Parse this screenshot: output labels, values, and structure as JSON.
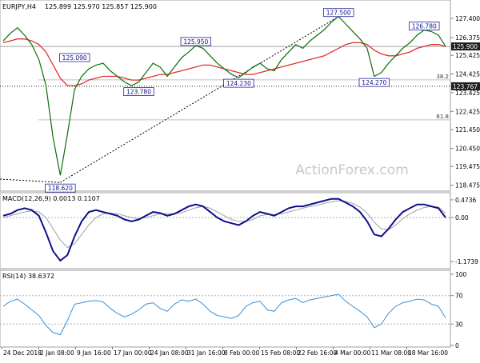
{
  "chart_data": [
    {
      "type": "line",
      "title": "EURJPY,H4",
      "ohlc": "125.899 125.970 125.857 125.900",
      "watermark": "ActionForex.com",
      "ylim": [
        118.2,
        128.3
      ],
      "y_ticks": [
        "127.400",
        "126.375",
        "125.425",
        "124.425",
        "123.425",
        "122.425",
        "121.450",
        "120.450",
        "119.475",
        "118.475"
      ],
      "x_labels": [
        "24 Dec 2018",
        "2 Jan 08:00",
        "9 Jan 16:00",
        "17 Jan 00:00",
        "24 Jan 08:00",
        "31 Jan 16:00",
        "8 Feb 00:00",
        "15 Feb 08:00",
        "22 Feb 16:00",
        "4 Mar 00:00",
        "11 Mar 08:00",
        "18 Mar 16:00"
      ],
      "series": [
        {
          "values": [
            126.2,
            126.6,
            126.9,
            126.5,
            126.0,
            125.2,
            123.8,
            121.0,
            119.0,
            121.2,
            123.6,
            124.3,
            124.7,
            124.9,
            125.0,
            124.6,
            124.3,
            124.0,
            123.8,
            124.0,
            124.5,
            125.0,
            124.8,
            124.3,
            124.8,
            125.3,
            125.6,
            125.95,
            125.8,
            125.4,
            125.0,
            124.7,
            124.4,
            124.23,
            124.5,
            124.8,
            125.0,
            124.7,
            124.6,
            125.2,
            125.6,
            126.0,
            125.8,
            126.2,
            126.5,
            126.8,
            127.2,
            127.5,
            127.1,
            126.7,
            126.3,
            125.8,
            124.3,
            124.5,
            125.0,
            125.4,
            125.8,
            126.1,
            126.5,
            126.78,
            126.7,
            126.5,
            125.9
          ]
        },
        {
          "values": [
            126.1,
            126.2,
            126.3,
            126.3,
            126.2,
            126.0,
            125.6,
            124.9,
            124.2,
            123.8,
            123.8,
            123.9,
            124.1,
            124.2,
            124.3,
            124.3,
            124.3,
            124.2,
            124.1,
            124.1,
            124.2,
            124.3,
            124.4,
            124.4,
            124.5,
            124.6,
            124.7,
            124.8,
            124.9,
            124.9,
            124.8,
            124.7,
            124.6,
            124.5,
            124.4,
            124.4,
            124.5,
            124.6,
            124.7,
            124.8,
            124.9,
            125.0,
            125.1,
            125.2,
            125.3,
            125.4,
            125.6,
            125.8,
            126.0,
            126.1,
            126.1,
            126.0,
            125.7,
            125.5,
            125.4,
            125.4,
            125.5,
            125.6,
            125.8,
            125.9,
            126.0,
            126.0,
            125.9
          ]
        }
      ],
      "price_labels": [
        "127.500",
        "126.780",
        "125.950",
        "125.090",
        "123.780",
        "124.230",
        "124.270",
        "118.620"
      ],
      "price_markers": [
        {
          "label": "127.500",
          "x": 47,
          "y": 127.5
        },
        {
          "label": "126.780",
          "x": 59,
          "y": 126.78
        },
        {
          "label": "125.950",
          "x": 27,
          "y": 125.95
        },
        {
          "label": "125.090",
          "x": 10,
          "y": 125.09
        },
        {
          "label": "123.780",
          "x": 19,
          "y": 123.78
        },
        {
          "label": "124.230",
          "x": 33,
          "y": 124.23
        },
        {
          "label": "124.270",
          "x": 52,
          "y": 124.27
        },
        {
          "label": "118.620",
          "x": 8,
          "y": 118.62
        }
      ],
      "levels": [
        {
          "label": "38.2",
          "value": 124.11
        },
        {
          "label": "61.8",
          "value": 121.97
        },
        {
          "label": "123.767",
          "value": 123.767
        }
      ],
      "current_price": "125.900",
      "current_value": 125.9,
      "level_price": "123.767"
    },
    {
      "type": "line",
      "title": "MACD(12,26,9) 0.0013 0.1107",
      "ylim": [
        -1.32,
        0.6
      ],
      "y_ticks": [
        "0.4736",
        "0.00",
        "-1.1739"
      ],
      "series": [
        {
          "values": [
            0.05,
            0.1,
            0.2,
            0.25,
            0.2,
            0.05,
            -0.4,
            -0.9,
            -1.15,
            -1.0,
            -0.5,
            -0.1,
            0.15,
            0.2,
            0.15,
            0.1,
            0.05,
            -0.05,
            -0.1,
            -0.05,
            0.05,
            0.15,
            0.12,
            0.05,
            0.1,
            0.2,
            0.3,
            0.35,
            0.3,
            0.15,
            0.0,
            -0.1,
            -0.15,
            -0.2,
            -0.1,
            0.05,
            0.15,
            0.1,
            0.05,
            0.15,
            0.25,
            0.3,
            0.3,
            0.35,
            0.4,
            0.45,
            0.5,
            0.5,
            0.4,
            0.3,
            0.15,
            -0.1,
            -0.45,
            -0.5,
            -0.3,
            -0.05,
            0.15,
            0.25,
            0.35,
            0.35,
            0.3,
            0.25,
            0.0
          ]
        },
        {
          "values": [
            0.0,
            0.05,
            0.1,
            0.15,
            0.18,
            0.15,
            0.0,
            -0.3,
            -0.6,
            -0.8,
            -0.7,
            -0.45,
            -0.2,
            0.0,
            0.1,
            0.12,
            0.1,
            0.05,
            0.0,
            -0.03,
            0.0,
            0.05,
            0.1,
            0.1,
            0.1,
            0.13,
            0.2,
            0.26,
            0.3,
            0.25,
            0.15,
            0.05,
            -0.05,
            -0.1,
            -0.1,
            -0.05,
            0.05,
            0.08,
            0.08,
            0.1,
            0.15,
            0.2,
            0.25,
            0.3,
            0.33,
            0.38,
            0.42,
            0.45,
            0.43,
            0.38,
            0.28,
            0.12,
            -0.12,
            -0.3,
            -0.32,
            -0.2,
            -0.03,
            0.1,
            0.2,
            0.27,
            0.3,
            0.28,
            0.11
          ]
        }
      ]
    },
    {
      "type": "line",
      "title": "RSI(14) 38.6372",
      "ylim": [
        0,
        100
      ],
      "y_ticks": [
        "100",
        "70",
        "30",
        "0"
      ],
      "reference_lines": [
        70,
        30
      ],
      "series": [
        {
          "values": [
            55,
            62,
            65,
            58,
            50,
            42,
            28,
            18,
            15,
            35,
            58,
            60,
            62,
            63,
            61,
            52,
            45,
            40,
            44,
            50,
            58,
            60,
            52,
            48,
            58,
            64,
            62,
            65,
            58,
            48,
            42,
            40,
            38,
            42,
            55,
            60,
            62,
            50,
            48,
            60,
            64,
            66,
            60,
            64,
            66,
            68,
            70,
            72,
            62,
            55,
            48,
            40,
            25,
            30,
            45,
            55,
            60,
            62,
            65,
            64,
            58,
            55,
            38.6
          ]
        }
      ]
    }
  ]
}
